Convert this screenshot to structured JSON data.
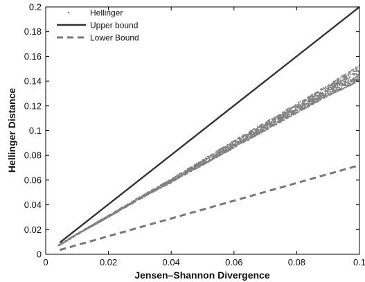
{
  "chart_data": {
    "type": "scatter",
    "title": "",
    "xlabel": "Jensen–Shannon Divergence",
    "ylabel": "Hellinger Distance",
    "xlim": [
      0,
      0.1
    ],
    "ylim": [
      0,
      0.2
    ],
    "grid": false,
    "legend_position": "top-left",
    "x_ticks": [
      0,
      0.02,
      0.04,
      0.06,
      0.08,
      0.1
    ],
    "x_tick_labels": [
      "0",
      "0.02",
      "0.04",
      "0.06",
      "0.08",
      "0.1"
    ],
    "y_ticks": [
      0,
      0.02,
      0.04,
      0.06,
      0.08,
      0.1,
      0.12,
      0.14,
      0.16,
      0.18,
      0.2
    ],
    "y_tick_labels": [
      "0",
      "0.02",
      "0.04",
      "0.06",
      "0.08",
      "0.1",
      "0.12",
      "0.14",
      "0.16",
      "0.18",
      "0.2"
    ],
    "series": [
      {
        "name": "Hellinger",
        "kind": "scatter",
        "color": "#808080",
        "x": [
          0.004,
          0.01,
          0.02,
          0.03,
          0.04,
          0.05,
          0.06,
          0.07,
          0.08,
          0.09,
          0.1
        ],
        "y_low": [
          0.0065,
          0.0158,
          0.03,
          0.0445,
          0.058,
          0.072,
          0.086,
          0.1,
          0.114,
          0.128,
          0.14
        ],
        "y_high": [
          0.0075,
          0.0168,
          0.0315,
          0.0465,
          0.061,
          0.0765,
          0.092,
          0.107,
          0.122,
          0.137,
          0.153
        ]
      },
      {
        "name": "Upper bound",
        "kind": "line",
        "style": "solid",
        "color": "#333333",
        "x": [
          0.0045,
          0.1
        ],
        "y": [
          0.0095,
          0.2
        ]
      },
      {
        "name": "Lower Bound",
        "kind": "line",
        "style": "dashed",
        "color": "#777777",
        "x": [
          0.0045,
          0.1
        ],
        "y": [
          0.0035,
          0.072
        ]
      }
    ]
  }
}
